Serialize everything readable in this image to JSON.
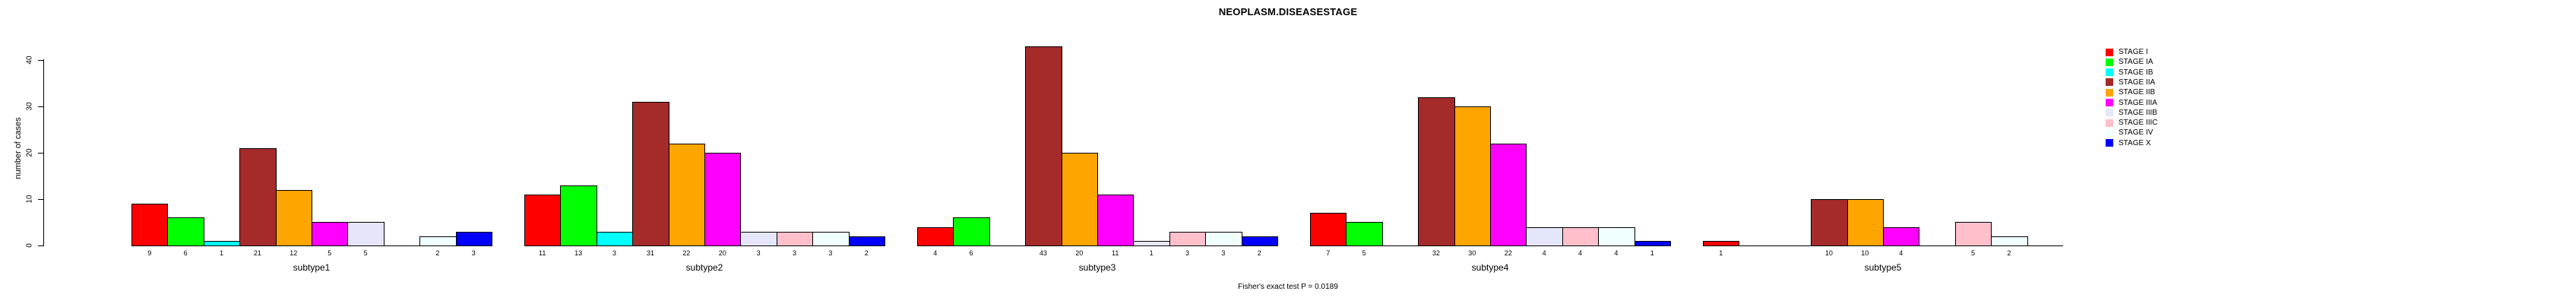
{
  "title": "NEOPLASM.DISEASESTAGE",
  "footer": "Fisher's exact test P = 0.0189",
  "chart_data": {
    "type": "bar",
    "title": "NEOPLASM.DISEASESTAGE",
    "xlabel": "",
    "ylabel": "number of cases",
    "ylim": [
      0,
      40
    ],
    "yticks": [
      0,
      10,
      20,
      30,
      40
    ],
    "grid": false,
    "legend_position": "right",
    "footnote": "Fisher's exact test P = 0.0189",
    "stages": [
      {
        "label": "STAGE I",
        "color": "#FF0000"
      },
      {
        "label": "STAGE IA",
        "color": "#00FF00"
      },
      {
        "label": "STAGE IB",
        "color": "#00FFFF"
      },
      {
        "label": "STAGE IIA",
        "color": "#A52A2A"
      },
      {
        "label": "STAGE IIB",
        "color": "#FFA500"
      },
      {
        "label": "STAGE IIIA",
        "color": "#FF00FF"
      },
      {
        "label": "STAGE IIIB",
        "color": "#E6E6FA"
      },
      {
        "label": "STAGE IIIC",
        "color": "#FFC0CB"
      },
      {
        "label": "STAGE IV",
        "color": "#F0FFFF"
      },
      {
        "label": "STAGE X",
        "color": "#0000FF"
      }
    ],
    "categories": [
      "subtype1",
      "subtype2",
      "subtype3",
      "subtype4",
      "subtype5"
    ],
    "groups": [
      {
        "name": "subtype1",
        "values": [
          9,
          6,
          1,
          21,
          12,
          5,
          5,
          null,
          2,
          3
        ]
      },
      {
        "name": "subtype2",
        "values": [
          11,
          13,
          3,
          31,
          22,
          20,
          3,
          3,
          3,
          2
        ]
      },
      {
        "name": "subtype3",
        "values": [
          4,
          6,
          null,
          43,
          20,
          11,
          1,
          3,
          3,
          2
        ]
      },
      {
        "name": "subtype4",
        "values": [
          7,
          5,
          null,
          32,
          30,
          22,
          4,
          4,
          4,
          1
        ]
      },
      {
        "name": "subtype5",
        "values": [
          1,
          null,
          null,
          10,
          10,
          4,
          null,
          5,
          2,
          null
        ]
      }
    ]
  }
}
